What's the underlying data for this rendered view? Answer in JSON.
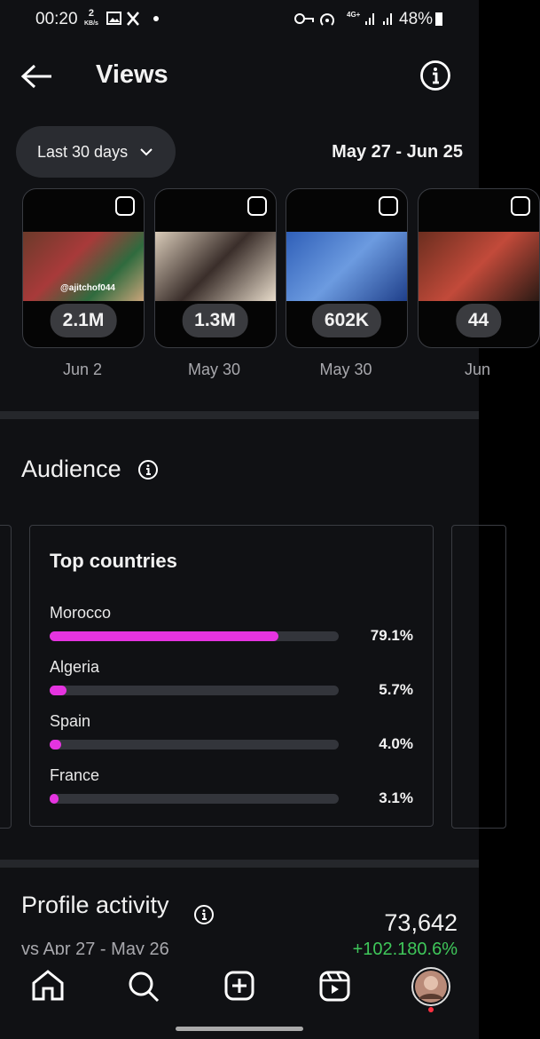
{
  "status_bar": {
    "time": "00:20",
    "speed": "2",
    "speed_unit": "KB/s",
    "network": "4G+",
    "battery": "48%"
  },
  "header": {
    "title": "Views"
  },
  "filter": {
    "range": "Last 30 days",
    "dates": "May 27 - Jun 25"
  },
  "reels": [
    {
      "views": "2.1M",
      "date": "Jun 2",
      "tag": "@ajitchof044"
    },
    {
      "views": "1.3M",
      "date": "May 30"
    },
    {
      "views": "602K",
      "date": "May 30"
    },
    {
      "views": "44",
      "date": "Jun"
    }
  ],
  "audience": {
    "title": "Audience",
    "top_countries": {
      "title": "Top countries",
      "rows": [
        {
          "name": "Morocco",
          "value": 79.1,
          "label": "79.1%"
        },
        {
          "name": "Algeria",
          "value": 5.7,
          "label": "5.7%"
        },
        {
          "name": "Spain",
          "value": 4.0,
          "label": "4.0%"
        },
        {
          "name": "France",
          "value": 3.1,
          "label": "3.1%"
        }
      ]
    }
  },
  "profile_activity": {
    "title": "Profile activity",
    "comparison": "vs Apr 27 - May 26",
    "total": "73,642",
    "change": "+102,180.6%"
  }
}
